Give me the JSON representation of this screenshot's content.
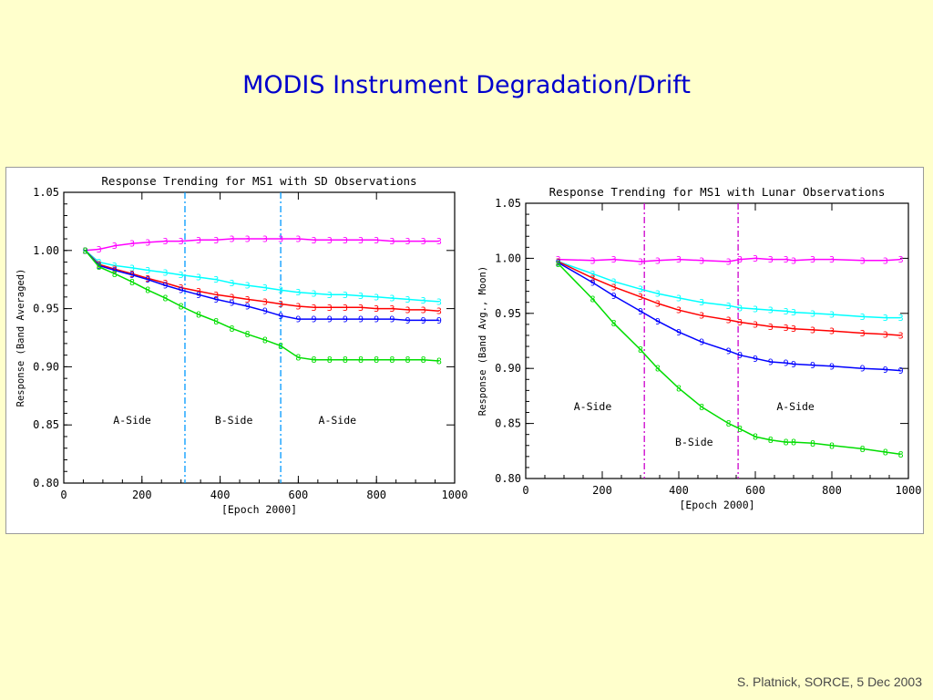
{
  "slide": {
    "title": "MODIS Instrument Degradation/Drift",
    "footer": "S. Platnick, SORCE, 5 Dec 2003"
  },
  "chart_data": [
    {
      "type": "line",
      "title": "Response Trending for MS1 with SD Observations",
      "xlabel": "[Epoch 2000]",
      "ylabel": "Response (Band Averaged)",
      "xlim": [
        0,
        1000
      ],
      "ylim": [
        0.8,
        1.05
      ],
      "xticks": [
        "0",
        "200",
        "400",
        "600",
        "800",
        "1000"
      ],
      "yticks": [
        "0.80",
        "0.85",
        "0.90",
        "0.95",
        "1.00",
        "1.05"
      ],
      "grid": false,
      "vlines": {
        "x": [
          310,
          555
        ],
        "color": "#0099ff",
        "style": "dash-dot"
      },
      "annotations": [
        {
          "text": "A-Side",
          "x": 175,
          "y": 0.851
        },
        {
          "text": "B-Side",
          "x": 435,
          "y": 0.851
        },
        {
          "text": "A-Side",
          "x": 700,
          "y": 0.851
        }
      ],
      "series": [
        {
          "color": "#ff00ff",
          "marker": "3",
          "x": [
            55,
            90,
            130,
            175,
            215,
            260,
            300,
            345,
            390,
            430,
            470,
            515,
            555,
            600,
            640,
            680,
            720,
            760,
            800,
            840,
            880,
            920,
            960
          ],
          "y": [
            1.0,
            1.001,
            1.004,
            1.006,
            1.007,
            1.008,
            1.008,
            1.009,
            1.009,
            1.01,
            1.01,
            1.01,
            1.01,
            1.01,
            1.009,
            1.009,
            1.009,
            1.009,
            1.009,
            1.008,
            1.008,
            1.008,
            1.008
          ]
        },
        {
          "color": "#00ffff",
          "marker": "3",
          "x": [
            55,
            90,
            130,
            175,
            215,
            260,
            300,
            345,
            390,
            430,
            470,
            515,
            555,
            600,
            640,
            680,
            720,
            760,
            800,
            840,
            880,
            920,
            960
          ],
          "y": [
            1.0,
            0.99,
            0.987,
            0.985,
            0.983,
            0.981,
            0.979,
            0.977,
            0.975,
            0.972,
            0.97,
            0.968,
            0.966,
            0.964,
            0.963,
            0.962,
            0.962,
            0.961,
            0.96,
            0.959,
            0.958,
            0.957,
            0.956
          ]
        },
        {
          "color": "#ff0000",
          "marker": "3",
          "x": [
            55,
            90,
            130,
            175,
            215,
            260,
            300,
            345,
            390,
            430,
            470,
            515,
            555,
            600,
            640,
            680,
            720,
            760,
            800,
            840,
            880,
            920,
            960
          ],
          "y": [
            1.0,
            0.988,
            0.984,
            0.98,
            0.976,
            0.972,
            0.968,
            0.965,
            0.962,
            0.96,
            0.958,
            0.956,
            0.954,
            0.952,
            0.951,
            0.951,
            0.951,
            0.951,
            0.95,
            0.95,
            0.949,
            0.949,
            0.948
          ]
        },
        {
          "color": "#0000ff",
          "marker": "9",
          "x": [
            55,
            90,
            130,
            175,
            215,
            260,
            300,
            345,
            390,
            430,
            470,
            515,
            555,
            600,
            640,
            680,
            720,
            760,
            800,
            840,
            880,
            920,
            960
          ],
          "y": [
            1.0,
            0.987,
            0.983,
            0.979,
            0.975,
            0.97,
            0.966,
            0.962,
            0.958,
            0.955,
            0.952,
            0.948,
            0.944,
            0.941,
            0.941,
            0.941,
            0.941,
            0.941,
            0.941,
            0.941,
            0.94,
            0.94,
            0.94
          ]
        },
        {
          "color": "#00dd00",
          "marker": "8",
          "x": [
            55,
            90,
            130,
            175,
            215,
            260,
            300,
            345,
            390,
            430,
            470,
            515,
            555,
            600,
            640,
            680,
            720,
            760,
            800,
            840,
            880,
            920,
            960
          ],
          "y": [
            1.0,
            0.986,
            0.98,
            0.973,
            0.966,
            0.959,
            0.952,
            0.945,
            0.939,
            0.933,
            0.928,
            0.923,
            0.918,
            0.908,
            0.906,
            0.906,
            0.906,
            0.906,
            0.906,
            0.906,
            0.906,
            0.906,
            0.905
          ]
        }
      ]
    },
    {
      "type": "line",
      "title": "Response Trending for MS1 with Lunar Observations",
      "xlabel": "[Epoch 2000]",
      "ylabel": "Response (Band Avg., Moon)",
      "xlim": [
        0,
        1000
      ],
      "ylim": [
        0.8,
        1.05
      ],
      "xticks": [
        "0",
        "200",
        "400",
        "600",
        "800",
        "1000"
      ],
      "yticks": [
        "0.80",
        "0.85",
        "0.90",
        "0.95",
        "1.00",
        "1.05"
      ],
      "grid": false,
      "vlines": {
        "x": [
          310,
          555
        ],
        "color": "#cc00cc",
        "style": "dash-dot"
      },
      "annotations": [
        {
          "text": "A-Side",
          "x": 175,
          "y": 0.862
        },
        {
          "text": "B-Side",
          "x": 440,
          "y": 0.83
        },
        {
          "text": "A-Side",
          "x": 705,
          "y": 0.862
        }
      ],
      "series": [
        {
          "color": "#ff00ff",
          "marker": "3",
          "x": [
            85,
            175,
            230,
            300,
            345,
            400,
            460,
            530,
            560,
            600,
            640,
            680,
            700,
            750,
            800,
            880,
            940,
            980
          ],
          "y": [
            0.999,
            0.998,
            0.999,
            0.997,
            0.998,
            0.999,
            0.998,
            0.997,
            0.999,
            1.0,
            0.999,
            0.999,
            0.998,
            0.999,
            0.999,
            0.998,
            0.998,
            0.999
          ]
        },
        {
          "color": "#00ffff",
          "marker": "3",
          "x": [
            85,
            175,
            230,
            300,
            345,
            400,
            460,
            530,
            560,
            600,
            640,
            680,
            700,
            750,
            800,
            880,
            940,
            980
          ],
          "y": [
            0.997,
            0.986,
            0.979,
            0.972,
            0.968,
            0.964,
            0.96,
            0.957,
            0.955,
            0.954,
            0.953,
            0.952,
            0.951,
            0.95,
            0.949,
            0.947,
            0.946,
            0.946
          ]
        },
        {
          "color": "#ff0000",
          "marker": "3",
          "x": [
            85,
            175,
            230,
            300,
            345,
            400,
            460,
            530,
            560,
            600,
            640,
            680,
            700,
            750,
            800,
            880,
            940,
            980
          ],
          "y": [
            0.997,
            0.982,
            0.974,
            0.965,
            0.959,
            0.953,
            0.948,
            0.944,
            0.942,
            0.94,
            0.938,
            0.937,
            0.936,
            0.935,
            0.934,
            0.932,
            0.931,
            0.93
          ]
        },
        {
          "color": "#0000ff",
          "marker": "9",
          "x": [
            85,
            175,
            230,
            300,
            345,
            400,
            460,
            530,
            560,
            600,
            640,
            680,
            700,
            750,
            800,
            880,
            940,
            980
          ],
          "y": [
            0.996,
            0.978,
            0.966,
            0.952,
            0.943,
            0.933,
            0.924,
            0.916,
            0.912,
            0.909,
            0.906,
            0.905,
            0.904,
            0.903,
            0.902,
            0.9,
            0.899,
            0.898
          ]
        },
        {
          "color": "#00dd00",
          "marker": "8",
          "x": [
            85,
            175,
            230,
            300,
            345,
            400,
            460,
            530,
            560,
            600,
            640,
            680,
            700,
            750,
            800,
            880,
            940,
            980
          ],
          "y": [
            0.995,
            0.963,
            0.941,
            0.917,
            0.9,
            0.882,
            0.865,
            0.85,
            0.845,
            0.838,
            0.835,
            0.833,
            0.833,
            0.832,
            0.83,
            0.827,
            0.824,
            0.822
          ]
        }
      ]
    }
  ]
}
